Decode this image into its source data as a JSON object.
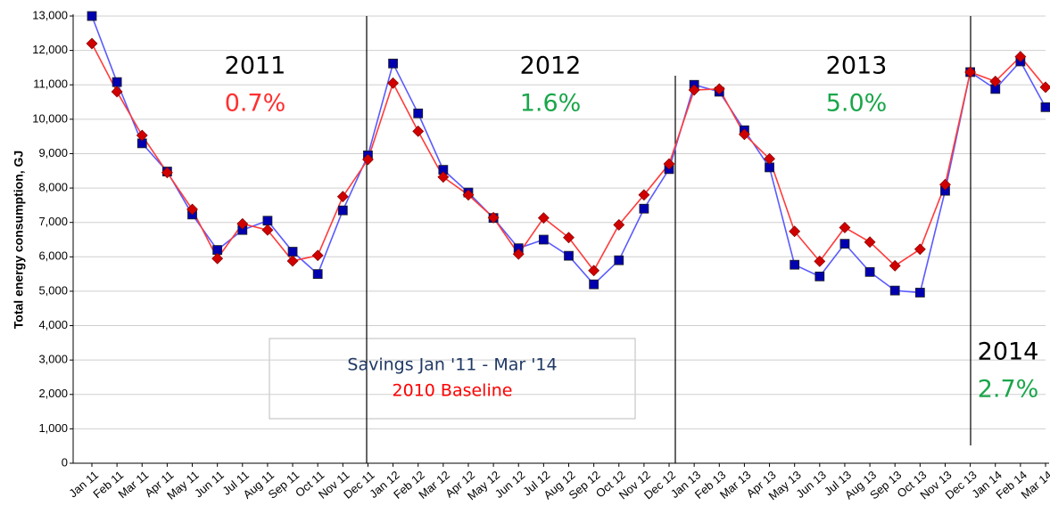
{
  "chart_data": {
    "type": "line",
    "y_label": "Total energy consumption, GJ",
    "categories": [
      "Jan 11",
      "Feb 11",
      "Mar 11",
      "Apr 11",
      "May 11",
      "Jun 11",
      "Jul 11",
      "Aug 11",
      "Sep 11",
      "Oct 11",
      "Nov 11",
      "Dec 11",
      "Jan 12",
      "Feb 12",
      "Mar 12",
      "Apr 12",
      "May 12",
      "Jun 12",
      "Jul 12",
      "Aug 12",
      "Sep 12",
      "Oct 12",
      "Nov 12",
      "Dec 12",
      "Jan 13",
      "Feb 13",
      "Mar 13",
      "Apr 13",
      "May 13",
      "Jun 13",
      "Jul 13",
      "Aug 13",
      "Sep 13",
      "Oct 13",
      "Nov 13",
      "Dec 13",
      "Jan 14",
      "Feb 14",
      "Mar 14"
    ],
    "series": [
      {
        "name": "Savings Jan '11 - Mar '14",
        "color": "#5a5aff",
        "label_color": "#1f3864",
        "marker": "square",
        "marker_color": "#0000b0",
        "values": [
          13000,
          11080,
          9300,
          8480,
          7230,
          6200,
          6780,
          7050,
          6150,
          5500,
          7350,
          8950,
          11620,
          10170,
          8530,
          7870,
          7130,
          6250,
          6500,
          6030,
          5200,
          5900,
          7400,
          8550,
          11000,
          10800,
          9680,
          8600,
          5770,
          5430,
          6380,
          5560,
          5020,
          4960,
          7920,
          11370,
          10880,
          11680,
          10350
        ]
      },
      {
        "name": "2010 Baseline",
        "color": "#ff3b3b",
        "label_color": "#ff0000",
        "marker": "diamond",
        "marker_color": "#d00000",
        "values": [
          12200,
          10800,
          9530,
          8450,
          7380,
          5950,
          6960,
          6780,
          5880,
          6040,
          7750,
          8830,
          11050,
          9650,
          8320,
          7800,
          7140,
          6080,
          7130,
          6560,
          5600,
          6930,
          7800,
          8700,
          10850,
          10880,
          9560,
          8850,
          6740,
          5870,
          6850,
          6430,
          5740,
          6220,
          8100,
          11370,
          11100,
          11820,
          10930
        ]
      }
    ],
    "ylim": [
      0,
      13000
    ],
    "yticks": [
      0,
      {
        "value": 1000,
        "label": "1,000"
      },
      {
        "value": 2000,
        "label": "2,000"
      },
      {
        "value": 3000,
        "label": "3,000"
      },
      {
        "value": 4000,
        "label": "4,000"
      },
      {
        "value": 5000,
        "label": "5,000"
      },
      {
        "value": 6000,
        "label": "6,000"
      },
      {
        "value": 7000,
        "label": "7,000"
      },
      {
        "value": 8000,
        "label": "8,000"
      },
      {
        "value": 9000,
        "label": "9,000"
      },
      {
        "value": 10000,
        "label": "10,000"
      },
      {
        "value": 11000,
        "label": "11,000"
      },
      {
        "value": 12000,
        "label": "12,000"
      },
      {
        "value": 13000,
        "label": "13,000"
      }
    ],
    "grid": true,
    "annotations": [
      {
        "year": "2011",
        "savings": "0.7%",
        "color": "#ff3030"
      },
      {
        "year": "2012",
        "savings": "1.6%",
        "color": "#1aa64a"
      },
      {
        "year": "2013",
        "savings": "5.0%",
        "color": "#1aa64a"
      },
      {
        "year": "2014",
        "savings": "2.7%",
        "color": "#1aa64a"
      }
    ]
  }
}
